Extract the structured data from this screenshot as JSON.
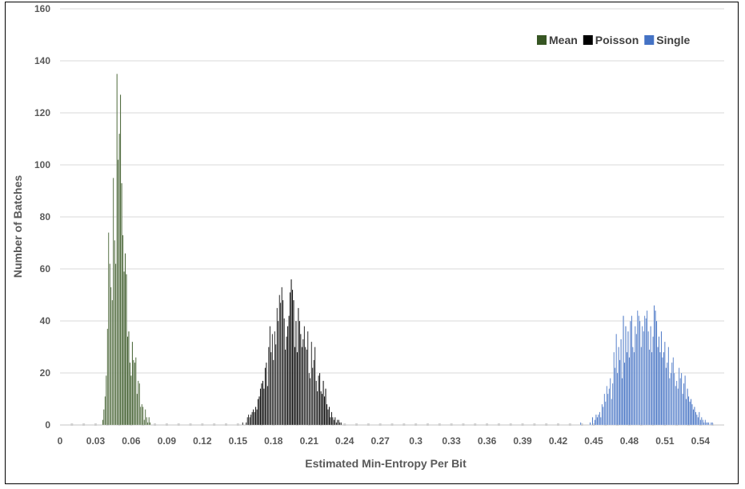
{
  "chart_data": {
    "type": "bar",
    "title": "",
    "xlabel": "Estimated Min-Entropy Per Bit",
    "ylabel": "Number  of  Batches",
    "xlim": [
      0,
      0.56
    ],
    "ylim": [
      0,
      160
    ],
    "x_ticks": [
      "0",
      "0.03",
      "0.06",
      "0.09",
      "0.12",
      "0.15",
      "0.18",
      "0.21",
      "0.24",
      "0.27",
      "0.3",
      "0.33",
      "0.36",
      "0.39",
      "0.42",
      "0.45",
      "0.48",
      "0.51",
      "0.54"
    ],
    "x_tick_values": [
      0,
      0.03,
      0.06,
      0.09,
      0.12,
      0.15,
      0.18,
      0.21,
      0.24,
      0.27,
      0.3,
      0.33,
      0.36,
      0.39,
      0.42,
      0.45,
      0.48,
      0.51,
      0.54
    ],
    "y_ticks": [
      0,
      20,
      40,
      60,
      80,
      100,
      120,
      140,
      160
    ],
    "grid": true,
    "legend_position": "top-right",
    "series": [
      {
        "name": "Mean",
        "color": "#375623",
        "x": [
          0.036,
          0.037,
          0.038,
          0.039,
          0.04,
          0.041,
          0.042,
          0.043,
          0.044,
          0.045,
          0.046,
          0.047,
          0.048,
          0.049,
          0.05,
          0.051,
          0.052,
          0.053,
          0.054,
          0.055,
          0.056,
          0.057,
          0.058,
          0.059,
          0.06,
          0.061,
          0.062,
          0.063,
          0.064,
          0.065,
          0.066,
          0.067,
          0.068,
          0.069,
          0.07,
          0.071,
          0.072,
          0.073,
          0.074,
          0.075,
          0.076
        ],
        "values": [
          2,
          6,
          11,
          19,
          37,
          74,
          62,
          53,
          48,
          95,
          71,
          62,
          135,
          102,
          112,
          127,
          93,
          73,
          59,
          66,
          58,
          34,
          36,
          24,
          19,
          32,
          25,
          24,
          26,
          12,
          17,
          16,
          7,
          8,
          7,
          2,
          6,
          3,
          1,
          3,
          1
        ]
      },
      {
        "name": "Poisson",
        "color": "#000000",
        "x": [
          0.154,
          0.157,
          0.158,
          0.159,
          0.16,
          0.161,
          0.162,
          0.163,
          0.164,
          0.165,
          0.166,
          0.167,
          0.168,
          0.169,
          0.17,
          0.171,
          0.172,
          0.173,
          0.174,
          0.175,
          0.176,
          0.177,
          0.178,
          0.179,
          0.18,
          0.181,
          0.182,
          0.183,
          0.184,
          0.185,
          0.186,
          0.187,
          0.188,
          0.189,
          0.19,
          0.191,
          0.192,
          0.193,
          0.194,
          0.195,
          0.196,
          0.197,
          0.198,
          0.199,
          0.2,
          0.201,
          0.202,
          0.203,
          0.204,
          0.205,
          0.206,
          0.207,
          0.208,
          0.209,
          0.21,
          0.211,
          0.212,
          0.213,
          0.214,
          0.215,
          0.216,
          0.217,
          0.218,
          0.219,
          0.22,
          0.221,
          0.222,
          0.223,
          0.224,
          0.225,
          0.226,
          0.227,
          0.228,
          0.229,
          0.23,
          0.231,
          0.232,
          0.233,
          0.234,
          0.235,
          0.236,
          0.237
        ],
        "values": [
          1,
          1,
          3,
          4,
          3,
          4,
          5,
          6,
          5,
          7,
          6,
          10,
          11,
          14,
          16,
          17,
          14,
          22,
          24,
          15,
          30,
          38,
          28,
          35,
          25,
          36,
          31,
          45,
          40,
          50,
          47,
          53,
          48,
          41,
          29,
          34,
          38,
          42,
          51,
          56,
          52,
          48,
          30,
          40,
          28,
          45,
          40,
          35,
          30,
          33,
          38,
          30,
          29,
          36,
          20,
          18,
          32,
          22,
          25,
          30,
          17,
          13,
          19,
          20,
          13,
          12,
          17,
          11,
          14,
          8,
          6,
          7,
          3,
          5,
          3,
          2,
          3,
          1,
          2,
          2,
          1,
          1
        ]
      },
      {
        "name": "Single",
        "color": "#4472C4",
        "x": [
          0.439,
          0.447,
          0.449,
          0.451,
          0.452,
          0.453,
          0.454,
          0.455,
          0.456,
          0.457,
          0.458,
          0.459,
          0.46,
          0.461,
          0.462,
          0.463,
          0.464,
          0.465,
          0.466,
          0.467,
          0.468,
          0.469,
          0.47,
          0.471,
          0.472,
          0.473,
          0.474,
          0.475,
          0.476,
          0.477,
          0.478,
          0.479,
          0.48,
          0.481,
          0.482,
          0.483,
          0.484,
          0.485,
          0.486,
          0.487,
          0.488,
          0.489,
          0.49,
          0.491,
          0.492,
          0.493,
          0.494,
          0.495,
          0.496,
          0.497,
          0.498,
          0.499,
          0.5,
          0.501,
          0.502,
          0.503,
          0.504,
          0.505,
          0.506,
          0.507,
          0.508,
          0.509,
          0.51,
          0.511,
          0.512,
          0.513,
          0.514,
          0.515,
          0.516,
          0.517,
          0.518,
          0.519,
          0.52,
          0.521,
          0.522,
          0.523,
          0.524,
          0.525,
          0.526,
          0.527,
          0.528,
          0.529,
          0.53,
          0.531,
          0.532,
          0.533,
          0.534,
          0.535,
          0.536,
          0.537,
          0.538,
          0.539,
          0.54,
          0.541,
          0.542,
          0.543,
          0.544,
          0.545,
          0.546,
          0.547,
          0.548,
          0.549,
          0.55
        ],
        "values": [
          1,
          1,
          3,
          2,
          4,
          3,
          4,
          5,
          3,
          8,
          7,
          12,
          9,
          15,
          12,
          14,
          18,
          10,
          16,
          28,
          22,
          35,
          20,
          30,
          25,
          33,
          18,
          42,
          24,
          38,
          28,
          36,
          26,
          40,
          42,
          30,
          28,
          38,
          35,
          44,
          42,
          40,
          30,
          38,
          36,
          42,
          41,
          44,
          36,
          29,
          38,
          28,
          34,
          46,
          44,
          40,
          30,
          34,
          28,
          36,
          26,
          28,
          32,
          22,
          24,
          30,
          18,
          20,
          24,
          26,
          20,
          15,
          17,
          14,
          22,
          18,
          20,
          12,
          16,
          19,
          10,
          14,
          11,
          9,
          10,
          8,
          6,
          7,
          5,
          4,
          3,
          5,
          2,
          3,
          2,
          1,
          2,
          1,
          1,
          1,
          0,
          1,
          1
        ]
      }
    ]
  }
}
